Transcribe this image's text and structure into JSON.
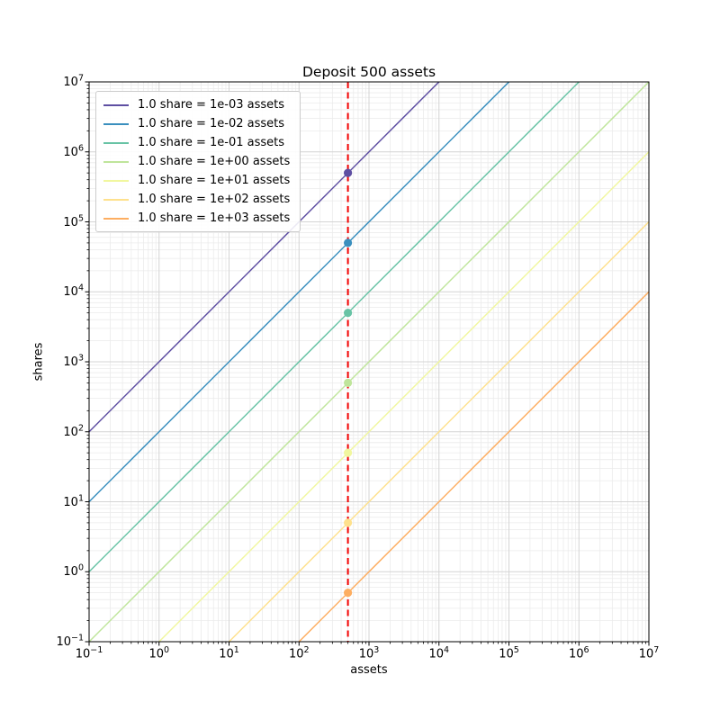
{
  "figure": {
    "title": "Deposit 500 assets",
    "xlabel": "assets",
    "ylabel": "shares"
  },
  "chart_data": {
    "type": "line",
    "title": "Deposit 500 assets",
    "xlabel": "assets",
    "ylabel": "shares",
    "x_scale": "log",
    "y_scale": "log",
    "x_range": [
      0.1,
      10000000
    ],
    "y_range": [
      0.1,
      10000000
    ],
    "x_tick_exponents": [
      -1,
      0,
      1,
      2,
      3,
      4,
      5,
      6,
      7
    ],
    "y_tick_exponents": [
      -1,
      0,
      1,
      2,
      3,
      4,
      5,
      6,
      7
    ],
    "grid": {
      "major": true,
      "minor": true
    },
    "legend_position": "upper left",
    "deposit_assets": 500,
    "vline": {
      "x": 500,
      "color": "#f20000",
      "style": "dashed"
    },
    "series": [
      {
        "label": "1.0 share = 1e-03 assets",
        "assets_per_share": 0.001,
        "color": "#5e4fa2",
        "marker": {
          "x": 500,
          "y": 500000
        }
      },
      {
        "label": "1.0 share = 1e-02 assets",
        "assets_per_share": 0.01,
        "color": "#3a8fbe",
        "marker": {
          "x": 500,
          "y": 50000
        }
      },
      {
        "label": "1.0 share = 1e-01 assets",
        "assets_per_share": 0.1,
        "color": "#68c3a5",
        "marker": {
          "x": 500,
          "y": 5000
        }
      },
      {
        "label": "1.0 share = 1e+00 assets",
        "assets_per_share": 1,
        "color": "#bfe59b",
        "marker": {
          "x": 500,
          "y": 500
        }
      },
      {
        "label": "1.0 share = 1e+01 assets",
        "assets_per_share": 10,
        "color": "#f1f79f",
        "marker": {
          "x": 500,
          "y": 50
        }
      },
      {
        "label": "1.0 share = 1e+02 assets",
        "assets_per_share": 100,
        "color": "#fee18d",
        "marker": {
          "x": 500,
          "y": 5
        }
      },
      {
        "label": "1.0 share = 1e+03 assets",
        "assets_per_share": 1000,
        "color": "#fdae61",
        "marker": {
          "x": 500,
          "y": 0.5
        }
      }
    ]
  }
}
